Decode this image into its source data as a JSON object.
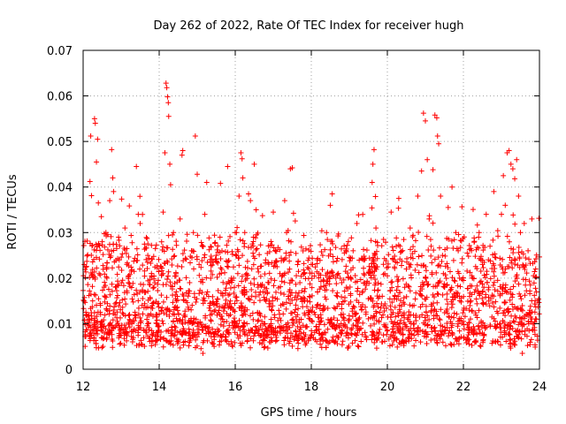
{
  "chart_data": {
    "type": "scatter",
    "title": "Day 262 of 2022, Rate Of TEC Index for receiver hugh",
    "xlabel": "GPS time / hours",
    "ylabel": "ROTI / TECUs",
    "xlim": [
      12,
      24
    ],
    "ylim": [
      0,
      0.07
    ],
    "x_ticks": [
      12,
      14,
      16,
      18,
      20,
      22,
      24
    ],
    "y_ticks": [
      0,
      0.01,
      0.02,
      0.03,
      0.04,
      0.05,
      0.06,
      0.07
    ],
    "x_tick_labels": [
      "12",
      "14",
      "16",
      "18",
      "20",
      "22",
      "24"
    ],
    "y_tick_labels": [
      "0",
      "0.01",
      "0.02",
      "0.03",
      "0.04",
      "0.05",
      "0.06",
      "0.07"
    ],
    "grid": true,
    "marker": "+",
    "color": "#ff0000",
    "series": [
      {
        "name": "ROTI",
        "points": [
          [
            12.05,
            0.0072
          ],
          [
            12.08,
            0.0118
          ],
          [
            12.12,
            0.0251
          ],
          [
            12.15,
            0.0095
          ],
          [
            12.18,
            0.0412
          ],
          [
            12.2,
            0.0512
          ],
          [
            12.22,
            0.0381
          ],
          [
            12.25,
            0.015
          ],
          [
            12.28,
            0.0088
          ],
          [
            12.3,
            0.055
          ],
          [
            12.32,
            0.054
          ],
          [
            12.35,
            0.0455
          ],
          [
            12.38,
            0.0505
          ],
          [
            12.4,
            0.0365
          ],
          [
            12.42,
            0.021
          ],
          [
            12.45,
            0.0125
          ],
          [
            12.48,
            0.0335
          ],
          [
            12.5,
            0.028
          ],
          [
            12.55,
            0.0068
          ],
          [
            12.6,
            0.03
          ],
          [
            12.65,
            0.0262
          ],
          [
            12.7,
            0.037
          ],
          [
            12.75,
            0.0482
          ],
          [
            12.78,
            0.042
          ],
          [
            12.8,
            0.039
          ],
          [
            12.85,
            0.018
          ],
          [
            12.9,
            0.0105
          ],
          [
            12.95,
            0.024
          ],
          [
            13.0,
            0.0075
          ],
          [
            13.1,
            0.031
          ],
          [
            13.15,
            0.023
          ],
          [
            13.2,
            0.0118
          ],
          [
            13.3,
            0.006
          ],
          [
            13.4,
            0.0445
          ],
          [
            13.45,
            0.034
          ],
          [
            13.5,
            0.032
          ],
          [
            13.55,
            0.014
          ],
          [
            13.6,
            0.0085
          ],
          [
            13.7,
            0.025
          ],
          [
            13.8,
            0.0205
          ],
          [
            13.9,
            0.0265
          ],
          [
            14.0,
            0.0095
          ],
          [
            14.05,
            0.0225
          ],
          [
            14.1,
            0.021
          ],
          [
            14.15,
            0.0475
          ],
          [
            14.18,
            0.0628
          ],
          [
            14.2,
            0.0618
          ],
          [
            14.22,
            0.0598
          ],
          [
            14.24,
            0.0585
          ],
          [
            14.25,
            0.0555
          ],
          [
            14.28,
            0.045
          ],
          [
            14.3,
            0.0405
          ],
          [
            14.35,
            0.0295
          ],
          [
            14.4,
            0.012
          ],
          [
            14.45,
            0.017
          ],
          [
            14.5,
            0.006
          ],
          [
            14.55,
            0.033
          ],
          [
            14.6,
            0.047
          ],
          [
            14.62,
            0.048
          ],
          [
            14.7,
            0.015
          ],
          [
            14.8,
            0.019
          ],
          [
            14.85,
            0.026
          ],
          [
            14.9,
            0.03
          ],
          [
            14.95,
            0.0512
          ],
          [
            15.0,
            0.0428
          ],
          [
            15.05,
            0.023
          ],
          [
            15.1,
            0.0045
          ],
          [
            15.15,
            0.0035
          ],
          [
            15.2,
            0.034
          ],
          [
            15.25,
            0.041
          ],
          [
            15.3,
            0.016
          ],
          [
            15.4,
            0.0088
          ],
          [
            15.5,
            0.025
          ],
          [
            15.6,
            0.029
          ],
          [
            15.7,
            0.0135
          ],
          [
            15.8,
            0.0445
          ],
          [
            15.9,
            0.02
          ],
          [
            16.0,
            0.03
          ],
          [
            16.05,
            0.01
          ],
          [
            16.1,
            0.038
          ],
          [
            16.15,
            0.0475
          ],
          [
            16.18,
            0.0462
          ],
          [
            16.2,
            0.042
          ],
          [
            16.25,
            0.03
          ],
          [
            16.3,
            0.021
          ],
          [
            16.35,
            0.0385
          ],
          [
            16.4,
            0.037
          ],
          [
            16.45,
            0.0275
          ],
          [
            16.5,
            0.045
          ],
          [
            16.55,
            0.035
          ],
          [
            16.6,
            0.018
          ],
          [
            16.7,
            0.0105
          ],
          [
            16.8,
            0.024
          ],
          [
            16.9,
            0.006
          ],
          [
            17.0,
            0.0345
          ],
          [
            17.1,
            0.0225
          ],
          [
            17.2,
            0.014
          ],
          [
            17.3,
            0.037
          ],
          [
            17.35,
            0.03
          ],
          [
            17.45,
            0.044
          ],
          [
            17.5,
            0.0442
          ],
          [
            17.6,
            0.0115
          ],
          [
            17.7,
            0.019
          ],
          [
            17.8,
            0.008
          ],
          [
            17.9,
            0.015
          ],
          [
            18.0,
            0.023
          ],
          [
            18.1,
            0.012
          ],
          [
            18.2,
            0.021
          ],
          [
            18.3,
            0.025
          ],
          [
            18.4,
            0.03
          ],
          [
            18.5,
            0.036
          ],
          [
            18.55,
            0.0385
          ],
          [
            18.6,
            0.0135
          ],
          [
            18.7,
            0.007
          ],
          [
            18.8,
            0.019
          ],
          [
            18.9,
            0.0215
          ],
          [
            19.0,
            0.011
          ],
          [
            19.1,
            0.026
          ],
          [
            19.2,
            0.032
          ],
          [
            19.3,
            0.009
          ],
          [
            19.4,
            0.024
          ],
          [
            19.5,
            0.0155
          ],
          [
            19.6,
            0.041
          ],
          [
            19.62,
            0.045
          ],
          [
            19.65,
            0.0482
          ],
          [
            19.7,
            0.031
          ],
          [
            19.8,
            0.0125
          ],
          [
            19.9,
            0.0285
          ],
          [
            20.0,
            0.0205
          ],
          [
            20.1,
            0.0345
          ],
          [
            20.2,
            0.016
          ],
          [
            20.3,
            0.0375
          ],
          [
            20.4,
            0.009
          ],
          [
            20.5,
            0.022
          ],
          [
            20.6,
            0.031
          ],
          [
            20.7,
            0.014
          ],
          [
            20.8,
            0.038
          ],
          [
            20.9,
            0.0435
          ],
          [
            20.95,
            0.0562
          ],
          [
            21.0,
            0.0545
          ],
          [
            21.05,
            0.046
          ],
          [
            21.1,
            0.033
          ],
          [
            21.15,
            0.027
          ],
          [
            21.2,
            0.0438
          ],
          [
            21.25,
            0.0558
          ],
          [
            21.3,
            0.0552
          ],
          [
            21.32,
            0.0512
          ],
          [
            21.35,
            0.0495
          ],
          [
            21.4,
            0.038
          ],
          [
            21.45,
            0.025
          ],
          [
            21.5,
            0.018
          ],
          [
            21.6,
            0.0355
          ],
          [
            21.7,
            0.04
          ],
          [
            21.8,
            0.03
          ],
          [
            21.9,
            0.02
          ],
          [
            22.0,
            0.0105
          ],
          [
            22.1,
            0.0255
          ],
          [
            22.2,
            0.015
          ],
          [
            22.3,
            0.008
          ],
          [
            22.4,
            0.029
          ],
          [
            22.5,
            0.023
          ],
          [
            22.6,
            0.034
          ],
          [
            22.7,
            0.027
          ],
          [
            22.8,
            0.039
          ],
          [
            22.9,
            0.0195
          ],
          [
            23.0,
            0.034
          ],
          [
            23.05,
            0.0425
          ],
          [
            23.1,
            0.036
          ],
          [
            23.15,
            0.0475
          ],
          [
            23.2,
            0.048
          ],
          [
            23.25,
            0.045
          ],
          [
            23.3,
            0.044
          ],
          [
            23.35,
            0.0418
          ],
          [
            23.4,
            0.046
          ],
          [
            23.45,
            0.038
          ],
          [
            23.5,
            0.03
          ],
          [
            23.55,
            0.0035
          ],
          [
            23.6,
            0.032
          ],
          [
            23.7,
            0.026
          ],
          [
            23.8,
            0.033
          ],
          [
            23.9,
            0.022
          ],
          [
            23.95,
            0.015
          ]
        ],
        "note": "Dense background cloud: typical values roughly 0.005–0.025 TECU across the whole 12–24 h span, with occasional bursts up to ~0.03–0.05."
      }
    ]
  }
}
